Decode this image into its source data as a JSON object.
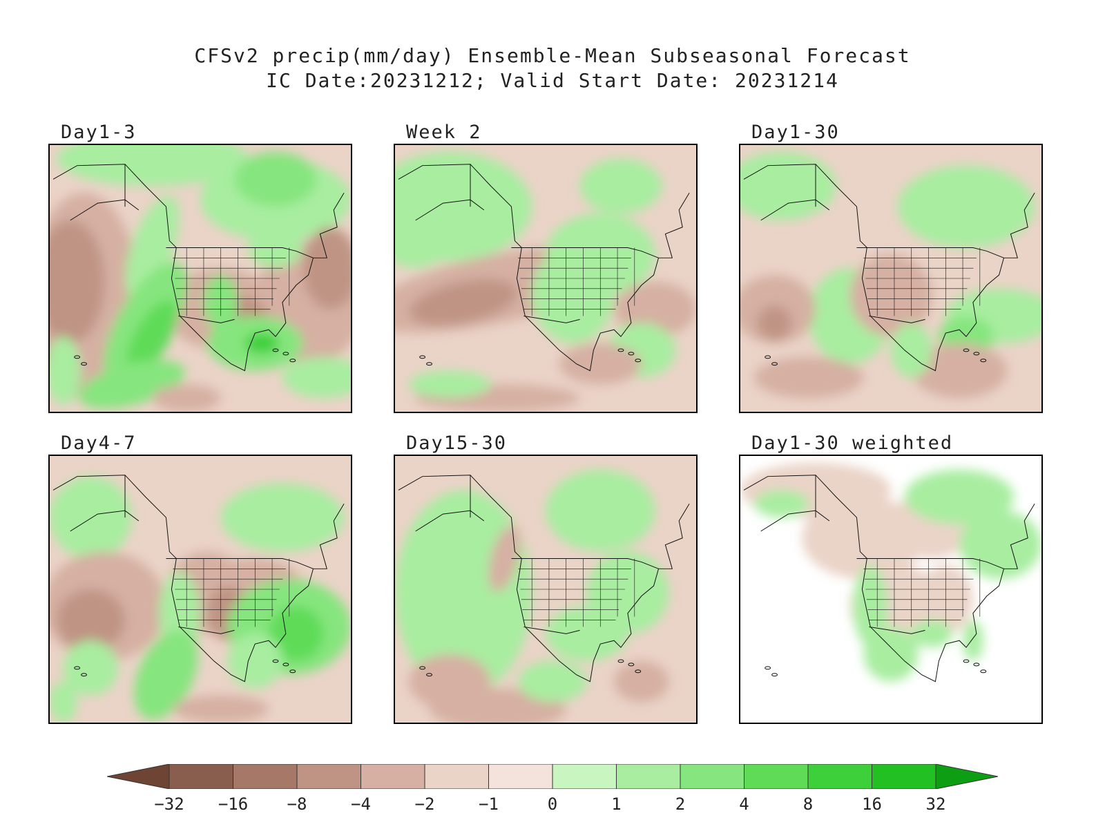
{
  "header": {
    "title_line1": "CFSv2 precip(mm/day) Ensemble-Mean Subseasonal Forecast",
    "title_line2": "IC Date:20231212; Valid Start Date: 20231214"
  },
  "panels": [
    {
      "label": "Day1-3",
      "variant": "day1-3"
    },
    {
      "label": "Week 2",
      "variant": "week2"
    },
    {
      "label": "Day1-30",
      "variant": "day1-30"
    },
    {
      "label": "Day4-7",
      "variant": "day4-7"
    },
    {
      "label": "Day15-30",
      "variant": "day15-30"
    },
    {
      "label": "Day1-30 weighted",
      "variant": "weighted"
    }
  ],
  "colorbar": {
    "ticks": [
      "−32",
      "−16",
      "−8",
      "−4",
      "−2",
      "−1",
      "0",
      "1",
      "2",
      "4",
      "8",
      "16",
      "32"
    ],
    "colors": [
      "#6e4434",
      "#8a5e4e",
      "#a67868",
      "#bf9485",
      "#d5b0a3",
      "#ead3c7",
      "#f3e3dc",
      "#c8f5c0",
      "#a8eda0",
      "#86e57e",
      "#5fdb58",
      "#3dd03a",
      "#22c022",
      "#0e9e14"
    ]
  }
}
